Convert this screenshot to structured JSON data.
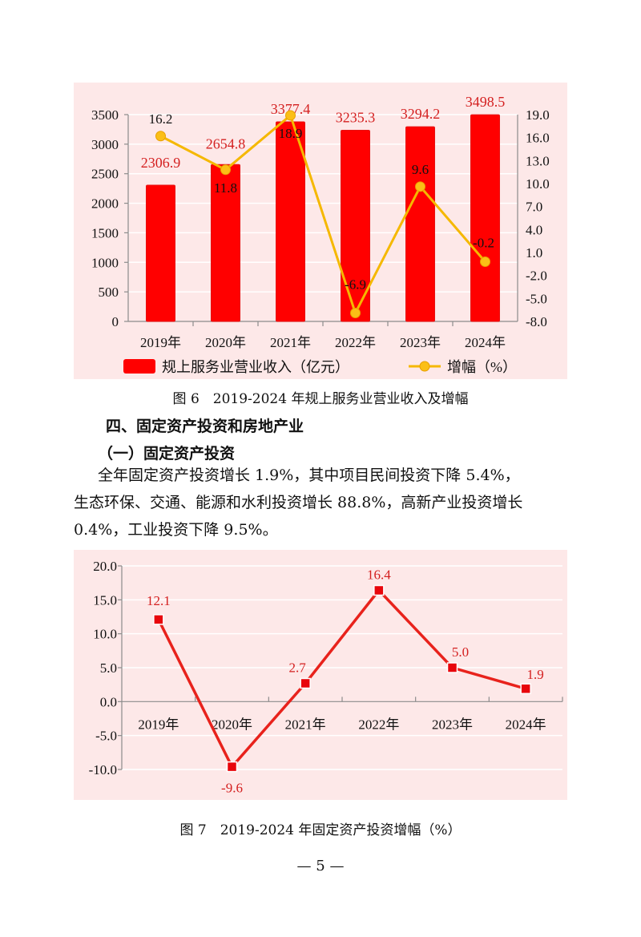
{
  "figure6": {
    "caption": "图 6　2019-2024 年规上服务业营业收入及增幅",
    "legend": {
      "bar_label": "规上服务业营业收入（亿元）",
      "line_label": "增幅（%）"
    }
  },
  "section": {
    "heading": "四、固定资产投资和房地产业",
    "subheading": "（一）固定资产投资",
    "paragraph_lines": [
      "全年固定资产投资增长 1.9%，其中项目民间投资下降 5.4%，",
      "生态环保、交通、能源和水利投资增长 88.8%，高新产业投资增长",
      "0.4%，工业投资下降 9.5%。"
    ]
  },
  "figure7": {
    "caption": "图 7　2019-2024 年固定资产投资增幅（%）"
  },
  "page_number": "— 5 —",
  "colors": {
    "panel_bg": "#fde8e8",
    "bar": "#ff0000",
    "bar_label": "#d42020",
    "growth_line": "#f5b800",
    "invest_line": "#e8221c"
  },
  "chart_data": [
    {
      "type": "bar+line",
      "title": "2019-2024年规上服务业营业收入及增幅",
      "categories": [
        "2019年",
        "2020年",
        "2021年",
        "2022年",
        "2023年",
        "2024年"
      ],
      "series": [
        {
          "name": "规上服务业营业收入（亿元）",
          "type": "bar",
          "axis": "left",
          "values": [
            2306.9,
            2654.8,
            3377.4,
            3235.3,
            3294.2,
            3498.5
          ]
        },
        {
          "name": "增幅（%）",
          "type": "line",
          "axis": "right",
          "values": [
            16.2,
            11.8,
            18.9,
            -6.9,
            9.6,
            -0.2
          ]
        }
      ],
      "left_axis": {
        "ticks": [
          0,
          500,
          1000,
          1500,
          2000,
          2500,
          3000,
          3500
        ],
        "ylim": [
          0,
          3500
        ]
      },
      "right_axis": {
        "ticks": [
          "-8.0",
          "-5.0",
          "-2.0",
          "1.0",
          "4.0",
          "7.0",
          "10.0",
          "13.0",
          "16.0",
          "19.0"
        ],
        "ylim": [
          -8,
          19
        ]
      },
      "grid": true,
      "legend_position": "bottom"
    },
    {
      "type": "line",
      "title": "2019-2024年固定资产投资增幅（%）",
      "categories": [
        "2019年",
        "2020年",
        "2021年",
        "2022年",
        "2023年",
        "2024年"
      ],
      "series": [
        {
          "name": "固定资产投资增幅（%）",
          "values": [
            12.1,
            -9.6,
            2.7,
            16.4,
            5.0,
            1.9
          ]
        }
      ],
      "y_axis": {
        "ticks": [
          "-10.0",
          "-5.0",
          "0.0",
          "5.0",
          "10.0",
          "15.0",
          "20.0"
        ],
        "ylim": [
          -10,
          20
        ]
      },
      "grid": true
    }
  ]
}
